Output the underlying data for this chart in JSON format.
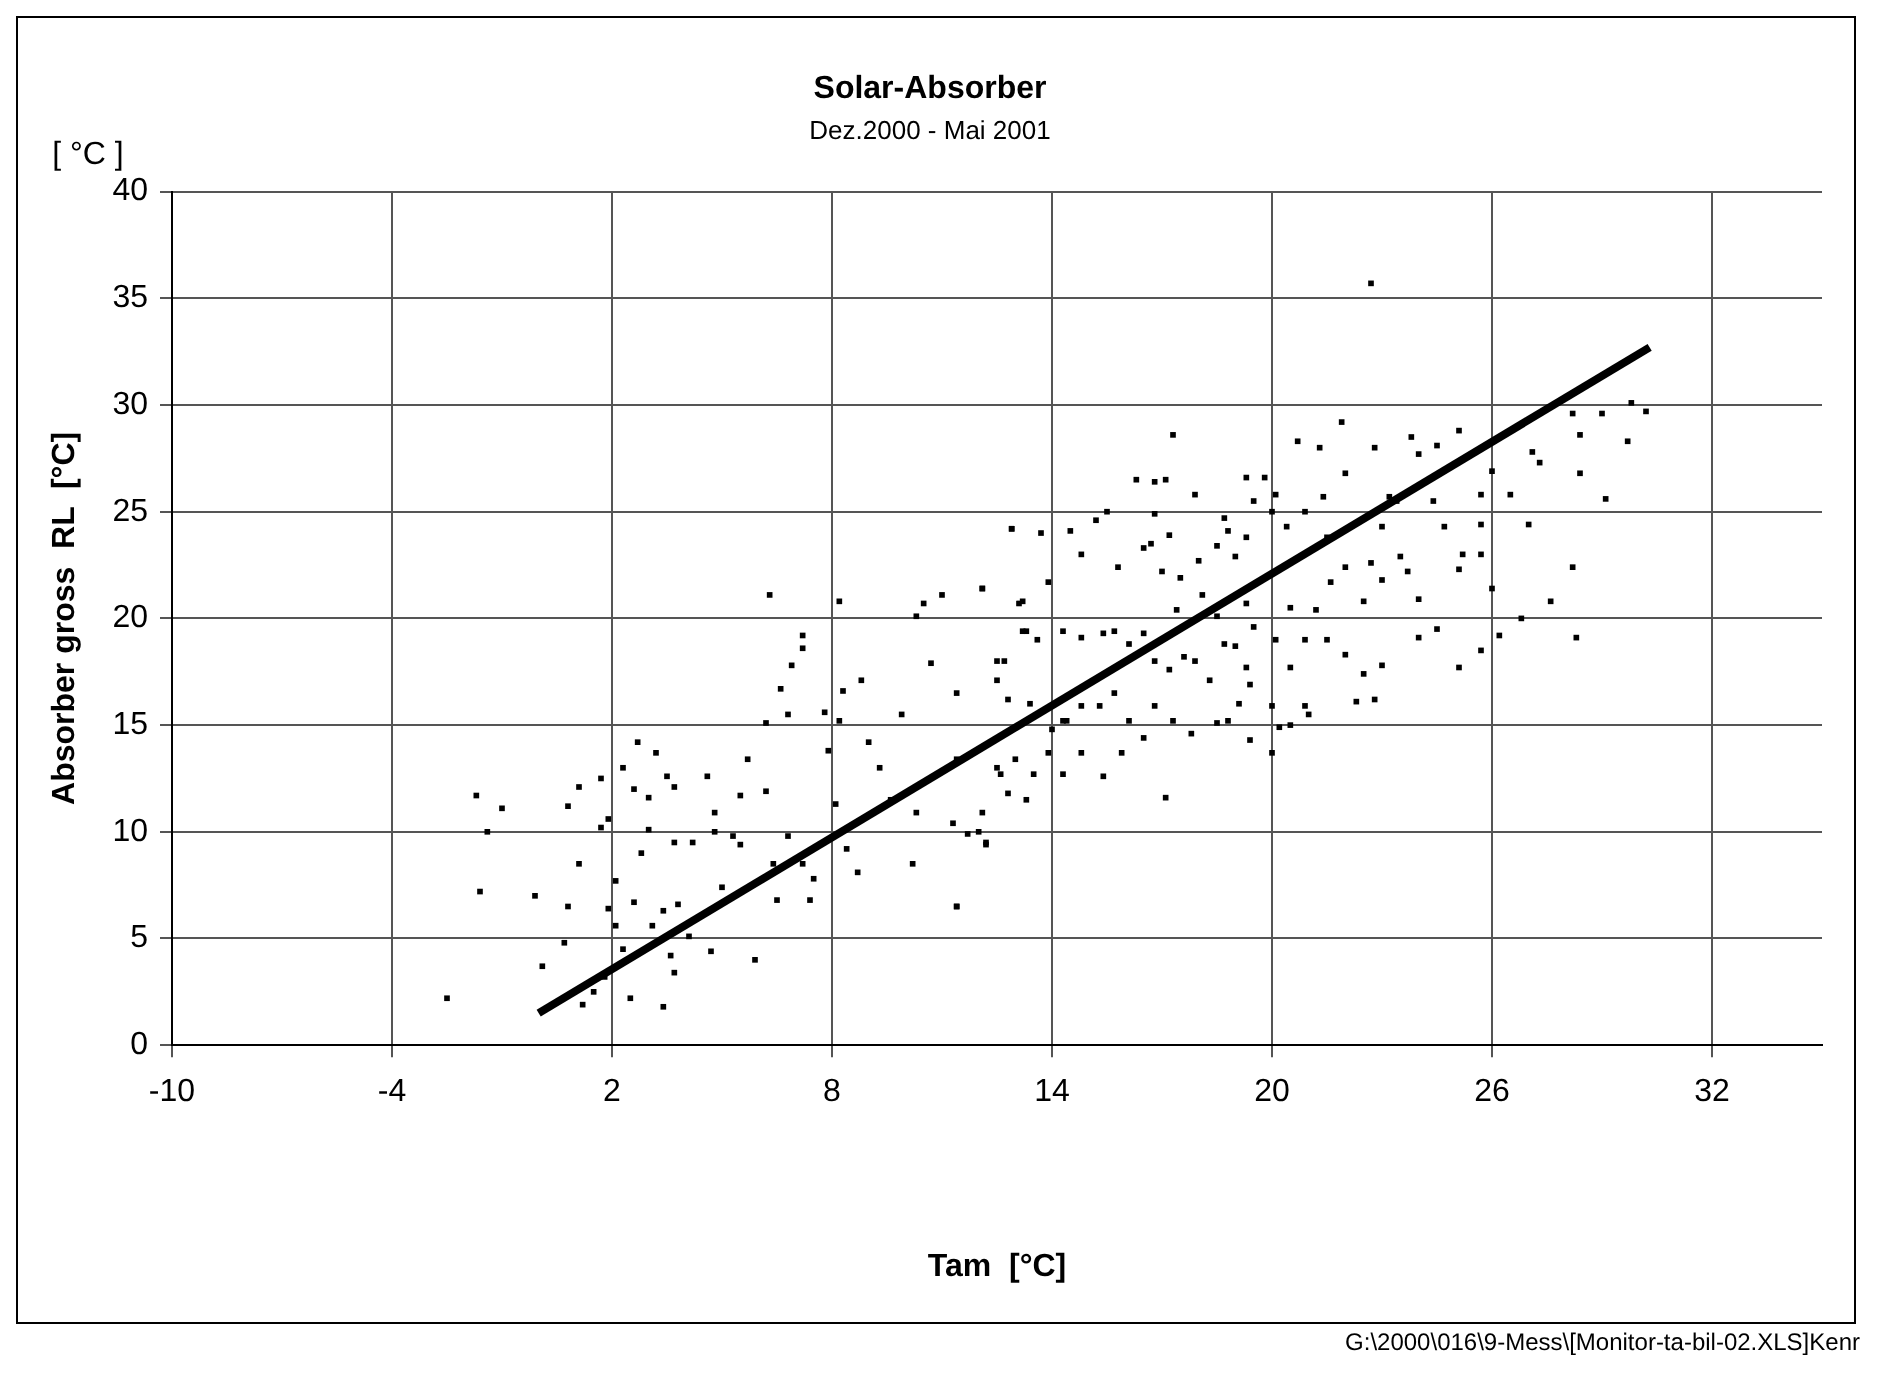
{
  "chart_data": {
    "type": "scatter",
    "title": "Solar-Absorber",
    "subtitle": "Dez.2000 - Mai 2001",
    "xlabel": "Tam  [°C]",
    "ylabel": "Absorber gross  RL  [°C]",
    "annotations": [
      "[ °C ]",
      "G:\\2000\\016\\9-Mess\\[Monitor-ta-bil-02.XLS]Kenr"
    ],
    "xlim": [
      -10,
      35
    ],
    "xticks": [
      -10,
      -4,
      2,
      8,
      14,
      20,
      26,
      32
    ],
    "ylim": [
      0,
      40
    ],
    "yticks": [
      0,
      5,
      10,
      15,
      20,
      25,
      30,
      35,
      40
    ],
    "grid": true,
    "legend": false,
    "series": [
      {
        "type": "scatter",
        "color": "#000000",
        "marker": "square",
        "x": [
          -2.5,
          -1.7,
          -1.4,
          -1.0,
          -1.6,
          -0.1,
          0.1,
          0.7,
          0.8,
          0.8,
          1.1,
          1.1,
          1.7,
          1.7,
          1.9,
          2.1,
          1.9,
          2.1,
          1.2,
          1.5,
          1.8,
          2.5,
          3.4,
          2.3,
          2.7,
          3.2,
          2.6,
          3.0,
          2.8,
          3.0,
          2.6,
          3.1,
          2.3,
          3.5,
          3.7,
          3.7,
          4.2,
          4.6,
          4.8,
          4.8,
          3.8,
          3.4,
          3.6,
          3.7,
          4.1,
          4.7,
          5.0,
          5.3,
          5.5,
          5.5,
          5.7,
          5.9,
          6.2,
          6.3,
          6.2,
          6.4,
          6.5,
          6.6,
          6.8,
          6.8,
          6.9,
          7.2,
          7.2,
          7.2,
          7.4,
          7.5,
          7.8,
          7.9,
          8.1,
          8.2,
          8.2,
          8.3,
          8.4,
          8.7,
          8.8,
          9.0,
          9.3,
          9.6,
          9.9,
          10.3,
          10.2,
          10.3,
          10.5,
          10.7,
          11.0,
          11.4,
          11.4,
          11.4,
          12.1,
          12.0,
          12.2,
          12.5,
          12.6,
          12.9,
          13.1,
          13.2,
          13.3,
          22.7,
          29.8,
          30.2,
          29.0,
          28.2,
          29.7,
          28.4,
          28.4,
          29.1,
          27.3,
          27.1,
          27.0,
          26.5,
          26.0,
          25.7,
          25.7,
          25.7,
          26.0,
          26.2,
          26.8,
          27.6,
          28.2,
          28.3,
          25.1,
          24.5,
          23.8,
          24.0,
          24.4,
          24.7,
          25.2,
          25.1,
          24.5,
          24.0,
          25.1,
          25.7,
          22.8,
          21.9,
          21.3,
          20.7,
          22.0,
          21.4,
          20.9,
          21.5,
          22.0,
          21.6,
          22.5,
          23.0,
          22.8,
          22.3,
          22.5,
          22.0,
          23.0,
          23.5,
          23.7,
          23.4,
          23.2,
          22.7,
          23.0,
          24.0,
          21.2,
          21.5,
          20.9,
          20.5,
          20.9,
          21.0,
          20.2,
          20.0,
          20.0,
          20.1,
          20.5,
          20.4,
          20.0,
          20.1,
          19.8,
          19.3,
          19.5,
          19.0,
          19.3,
          18.8,
          18.7,
          18.5,
          17.9,
          17.3,
          17.1,
          16.8,
          16.3,
          16.8,
          17.2,
          16.7,
          16.5,
          15.8,
          15.2,
          15.5,
          14.8,
          14.5,
          13.7,
          12.9,
          13.2,
          13.9,
          12.1,
          17.0,
          17.5,
          18.0,
          18.1,
          17.4,
          18.5,
          19.3,
          19.5,
          18.7,
          19.0,
          19.3,
          19.4,
          19.1,
          18.8,
          18.5,
          19.4,
          18.3,
          17.9,
          17.6,
          17.2,
          16.8,
          16.5,
          16.1,
          15.7,
          15.4,
          14.8,
          14.3,
          13.6,
          13.3,
          12.7,
          12.5,
          12.8,
          13.4,
          14.0,
          14.4,
          14.8,
          15.3,
          15.7,
          16.1,
          16.5,
          16.8,
          17.3,
          17.8,
          15.9,
          15.4,
          14.8,
          14.3,
          13.9,
          13.5,
          13.0,
          12.5,
          12.8,
          12.1,
          11.7,
          11.3,
          12.2,
          11.4,
          17.1,
          14.3,
          20.5
        ],
        "values": [
          2.2,
          11.7,
          10.0,
          11.1,
          7.2,
          7.0,
          3.7,
          4.8,
          6.5,
          11.2,
          8.5,
          12.1,
          12.5,
          10.2,
          10.6,
          7.7,
          6.4,
          5.6,
          1.9,
          2.5,
          3.2,
          2.2,
          1.8,
          13.0,
          14.2,
          13.7,
          12.0,
          11.6,
          9.0,
          10.1,
          6.7,
          5.6,
          4.5,
          12.6,
          12.1,
          9.5,
          9.5,
          12.6,
          10.9,
          10.0,
          6.6,
          6.3,
          4.2,
          3.4,
          5.1,
          4.4,
          7.4,
          9.8,
          9.4,
          11.7,
          13.4,
          4.0,
          15.1,
          21.1,
          11.9,
          8.5,
          6.8,
          16.7,
          9.8,
          15.5,
          17.8,
          19.2,
          18.6,
          8.5,
          6.8,
          7.8,
          15.6,
          13.8,
          11.3,
          20.8,
          15.2,
          16.6,
          9.2,
          8.1,
          17.1,
          14.2,
          13.0,
          11.5,
          15.5,
          10.9,
          8.5,
          20.1,
          20.7,
          17.9,
          21.1,
          6.5,
          16.5,
          13.4,
          21.4,
          10.0,
          9.4,
          18.0,
          12.7,
          24.2,
          20.7,
          19.4,
          11.5,
          35.7,
          30.1,
          29.7,
          29.6,
          29.6,
          28.3,
          28.6,
          26.8,
          25.6,
          27.3,
          27.8,
          24.4,
          25.8,
          26.9,
          25.8,
          24.4,
          23.0,
          21.4,
          19.2,
          20.0,
          20.8,
          22.4,
          19.1,
          28.8,
          28.1,
          28.5,
          27.7,
          25.5,
          24.3,
          23.0,
          22.3,
          19.5,
          19.1,
          17.7,
          18.5,
          28.0,
          29.2,
          28.0,
          28.3,
          26.8,
          25.7,
          25.0,
          23.8,
          22.4,
          21.7,
          20.8,
          17.8,
          16.2,
          16.1,
          17.4,
          18.3,
          24.3,
          22.9,
          22.2,
          25.5,
          25.7,
          22.6,
          21.8,
          20.9,
          20.4,
          19.0,
          19.0,
          17.7,
          15.9,
          15.5,
          14.9,
          13.7,
          15.9,
          19.0,
          20.5,
          24.3,
          25.0,
          25.8,
          26.6,
          26.6,
          25.5,
          22.9,
          23.8,
          24.1,
          24.7,
          23.4,
          25.8,
          28.6,
          26.5,
          26.4,
          26.5,
          24.9,
          23.9,
          23.5,
          23.3,
          22.4,
          24.6,
          25.0,
          23.0,
          24.1,
          24.0,
          24.2,
          20.8,
          21.7,
          21.4,
          22.2,
          21.9,
          22.7,
          21.1,
          20.4,
          20.1,
          20.7,
          19.6,
          18.8,
          18.7,
          17.7,
          16.9,
          16.0,
          15.2,
          15.1,
          14.3,
          17.1,
          18.0,
          18.2,
          17.6,
          18.0,
          19.3,
          18.8,
          19.4,
          19.3,
          19.1,
          19.4,
          19.0,
          19.4,
          18.0,
          17.1,
          16.2,
          16.0,
          14.8,
          15.2,
          15.9,
          15.9,
          16.5,
          15.2,
          14.4,
          15.9,
          15.2,
          14.6,
          13.7,
          12.6,
          13.7,
          12.7,
          13.7,
          12.7,
          13.4,
          13.0,
          11.8,
          10.9,
          9.9,
          10.4,
          9.5,
          6.5,
          11.6,
          15.2,
          15.0
        ]
      },
      {
        "type": "line",
        "color": "#000000",
        "marker": "none",
        "x": [
          0.0,
          30.3
        ],
        "values": [
          1.5,
          32.7
        ]
      }
    ]
  }
}
